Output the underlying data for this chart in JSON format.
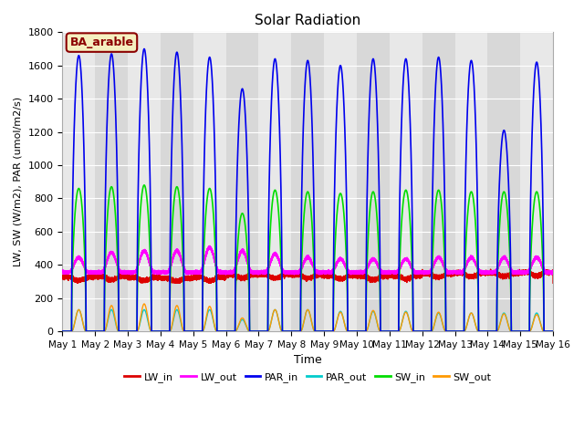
{
  "title": "Solar Radiation",
  "xlabel": "Time",
  "ylabel": "LW, SW (W/m2), PAR (umol/m2/s)",
  "annotation": "BA_arable",
  "ylim": [
    0,
    1800
  ],
  "n_days": 15,
  "legend_entries": [
    "LW_in",
    "LW_out",
    "PAR_in",
    "PAR_out",
    "SW_in",
    "SW_out"
  ],
  "legend_colors": [
    "#dd0000",
    "#ff00ff",
    "#0000ee",
    "#00cccc",
    "#00dd00",
    "#ff9900"
  ],
  "background_color": "#e0e0e0",
  "grid_color": "#ffffff",
  "tick_labels": [
    "May 1",
    "May 2",
    "May 3",
    "May 4",
    "May 5",
    "May 6",
    "May 7",
    "May 8",
    "May 9",
    "May 10",
    "May 11",
    "May 12",
    "May 13",
    "May 14",
    "May 15",
    "May 16"
  ],
  "PAR_in_peaks": [
    1660,
    1670,
    1700,
    1680,
    1650,
    1460,
    1640,
    1630,
    1600,
    1640,
    1640,
    1650,
    1630,
    1210,
    1620
  ],
  "SW_in_peaks": [
    860,
    870,
    880,
    870,
    860,
    710,
    850,
    840,
    830,
    840,
    850,
    850,
    840,
    840,
    840
  ],
  "SW_out_peaks": [
    130,
    155,
    165,
    155,
    150,
    80,
    130,
    130,
    115,
    125,
    115,
    115,
    110,
    105,
    100
  ],
  "PAR_out_peaks": [
    130,
    130,
    130,
    130,
    130,
    70,
    130,
    130,
    120,
    120,
    120,
    110,
    110,
    110,
    110
  ],
  "LW_out_day_add": [
    90,
    120,
    130,
    130,
    150,
    130,
    110,
    90,
    80,
    80,
    80,
    90,
    90,
    90,
    90
  ],
  "LW_in_base": [
    325,
    330,
    325,
    320,
    325,
    340,
    340,
    340,
    335,
    330,
    335,
    345,
    350,
    350,
    355
  ]
}
